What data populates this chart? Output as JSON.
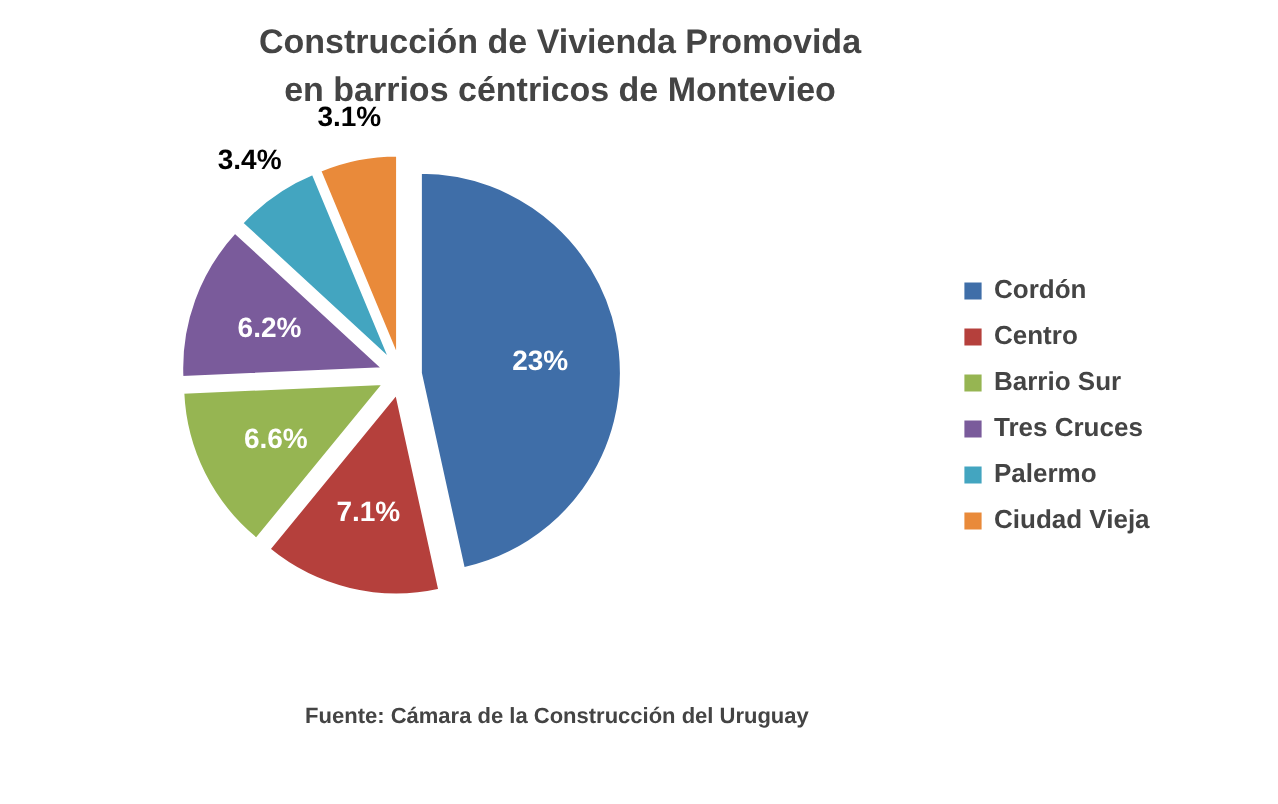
{
  "chart_data": {
    "type": "pie",
    "title": "Construcción de Vivienda Promovida\nen barrios céntricos de Montevieo",
    "categories": [
      "Cordón",
      "Centro",
      "Barrio Sur",
      "Tres Cruces",
      "Palermo",
      "Ciudad Vieja"
    ],
    "values": [
      23,
      7.1,
      6.6,
      6.2,
      3.4,
      3.1
    ],
    "colors": [
      "#3f6ea8",
      "#b5403c",
      "#96b552",
      "#7a5b9b",
      "#43a5c0",
      "#e98a3a"
    ],
    "value_labels": [
      "23%",
      "7.1%",
      "6.6%",
      "6.2%",
      "3.4%",
      "3.1%"
    ],
    "legend": "right",
    "annotations": [
      "Fuente:  Cámara de la Construcción del Uruguay"
    ]
  }
}
